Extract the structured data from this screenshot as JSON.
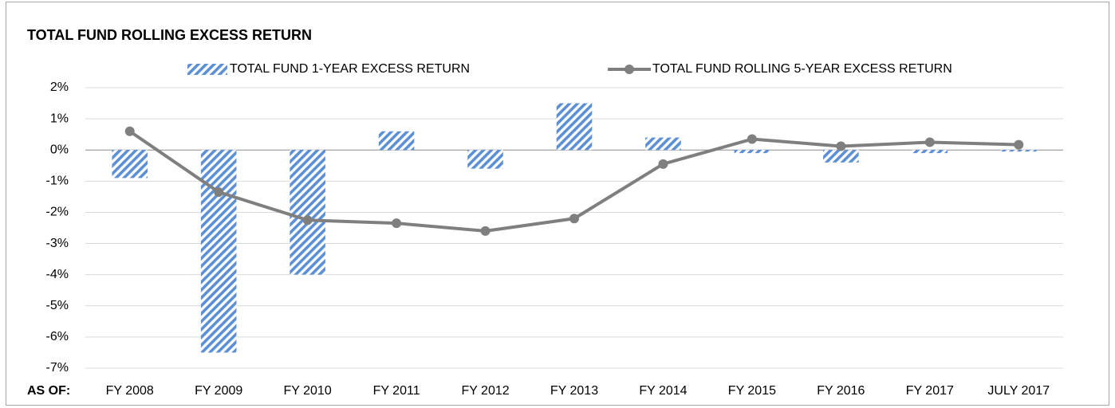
{
  "chart_data": {
    "type": "bar_line",
    "title": "TOTAL FUND ROLLING EXCESS RETURN",
    "x_label": "AS OF:",
    "categories": [
      "FY 2008",
      "FY 2009",
      "FY 2010",
      "FY 2011",
      "FY 2012",
      "FY 2013",
      "FY 2014",
      "FY 2015",
      "FY 2016",
      "FY 2017",
      "JULY 2017"
    ],
    "series": [
      {
        "name": "TOTAL FUND 1-YEAR EXCESS RETURN",
        "type": "bar",
        "color": "#5b8fd6",
        "values": [
          -0.9,
          -6.5,
          -4.0,
          0.6,
          -0.6,
          1.5,
          0.4,
          -0.1,
          -0.4,
          -0.1,
          -0.05
        ]
      },
      {
        "name": "TOTAL FUND ROLLING 5-YEAR EXCESS RETURN",
        "type": "line",
        "color": "#7f7f7f",
        "values": [
          0.6,
          -1.35,
          -2.25,
          -2.35,
          -2.6,
          -2.2,
          -0.45,
          0.35,
          0.12,
          0.25,
          0.17
        ]
      }
    ],
    "ylim": [
      -7,
      2
    ],
    "yticks": [
      {
        "value": 2,
        "label": "2%"
      },
      {
        "value": 1,
        "label": "1%"
      },
      {
        "value": 0,
        "label": "0%"
      },
      {
        "value": -1,
        "label": "-1%"
      },
      {
        "value": -2,
        "label": "-2%"
      },
      {
        "value": -3,
        "label": "-3%"
      },
      {
        "value": -4,
        "label": "-4%"
      },
      {
        "value": -5,
        "label": "-5%"
      },
      {
        "value": -6,
        "label": "-6%"
      },
      {
        "value": -7,
        "label": "-7%"
      }
    ],
    "grid": true
  }
}
